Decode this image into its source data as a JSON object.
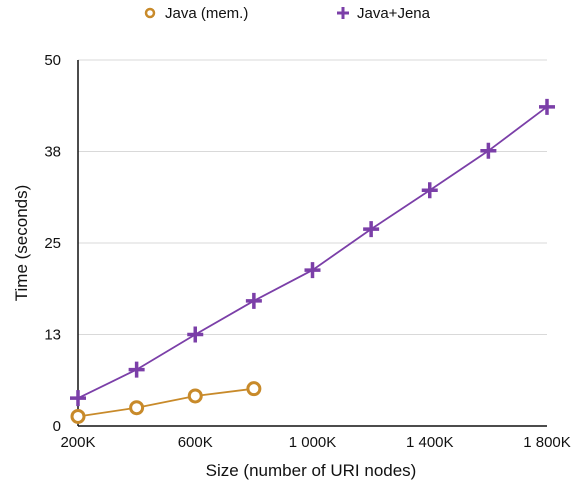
{
  "chart_data": {
    "type": "line",
    "xlabel": "Size (number of URI nodes)",
    "ylabel": "Time (seconds)",
    "xlim": [
      200,
      1800
    ],
    "ylim": [
      0,
      50
    ],
    "x_ticks": [
      200,
      600,
      1000,
      1400,
      1800
    ],
    "x_tick_labels": [
      "200K",
      "600K",
      "1 000K",
      "1 400K",
      "1 800K"
    ],
    "y_ticks": [
      0,
      12.5,
      25,
      37.5,
      50
    ],
    "y_tick_labels": [
      "0",
      "13",
      "25",
      "38",
      "50"
    ],
    "grid": "horizontal",
    "legend_position": "top",
    "series": [
      {
        "name": "Java (mem.)",
        "color": "#c88a2a",
        "marker": "circle",
        "x": [
          200,
          400,
          600,
          800
        ],
        "y": [
          1.3,
          2.5,
          4.1,
          5.1
        ]
      },
      {
        "name": "Java+Jena",
        "color": "#7b3fa8",
        "marker": "plus",
        "x": [
          200,
          400,
          600,
          800,
          1000,
          1200,
          1400,
          1600,
          1800
        ],
        "y": [
          3.8,
          7.7,
          12.5,
          17.1,
          21.3,
          26.9,
          32.2,
          37.6,
          43.6
        ]
      }
    ]
  }
}
